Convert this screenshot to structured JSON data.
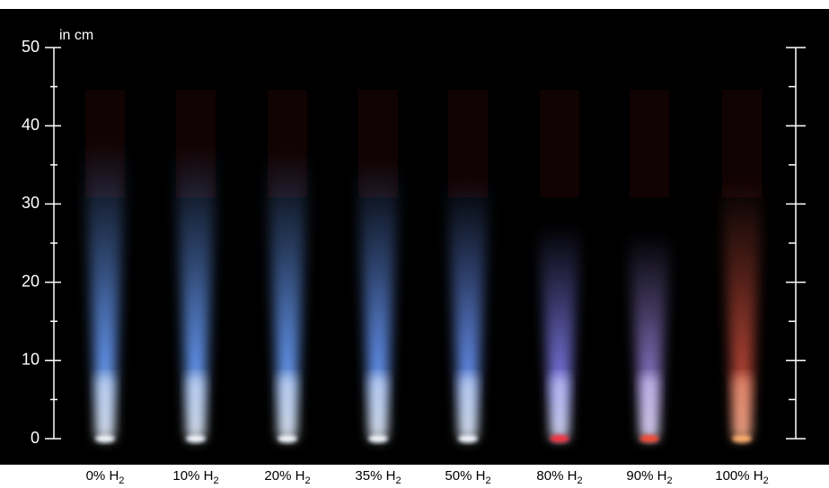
{
  "scale": {
    "unit_label": "in cm",
    "ticks": [
      0,
      10,
      20,
      30,
      40,
      50
    ]
  },
  "flames": [
    {
      "label": "0% H",
      "subscript": "2"
    },
    {
      "label": "10% H",
      "subscript": "2"
    },
    {
      "label": "20% H",
      "subscript": "2"
    },
    {
      "label": "35% H",
      "subscript": "2"
    },
    {
      "label": "50% H",
      "subscript": "2"
    },
    {
      "label": "80% H",
      "subscript": "2"
    },
    {
      "label": "90% H",
      "subscript": "2"
    },
    {
      "label": "100% H",
      "subscript": "2"
    }
  ]
}
